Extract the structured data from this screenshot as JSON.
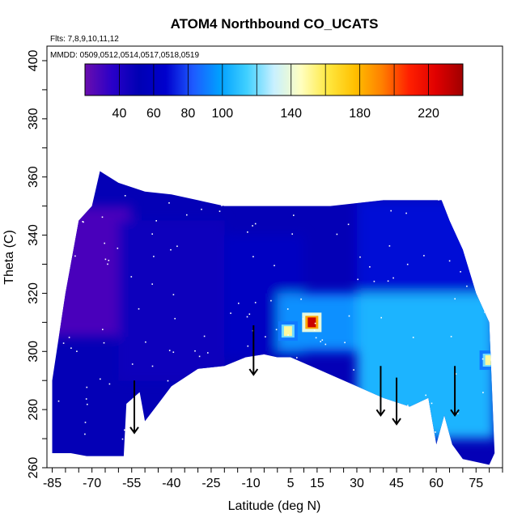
{
  "chart_data": {
    "type": "heatmap",
    "title": "ATOM4 Northbound CO_UCATS",
    "annotations": {
      "flights": "Flts: 7,8,9,10,11,12",
      "dates": "MMDD: 0509,0512,0514,0517,0518,0519"
    },
    "xlabel": "Latitude (deg N)",
    "ylabel": "Theta (C)",
    "xlim": [
      -87,
      85
    ],
    "ylim": [
      260,
      405
    ],
    "x_ticks": [
      -85,
      -70,
      -55,
      -40,
      -25,
      -10,
      5,
      15,
      30,
      45,
      60,
      75
    ],
    "y_ticks": [
      260,
      280,
      300,
      320,
      340,
      360,
      380,
      400
    ],
    "colorbar": {
      "range": [
        20,
        240
      ],
      "ticks": [
        40,
        60,
        80,
        100,
        140,
        180,
        220
      ],
      "colors": [
        "#6a0dad",
        "#2a00c8",
        "#0000b4",
        "#0000cd",
        "#1e5aff",
        "#00a0ff",
        "#40d0ff",
        "#c8f0ff",
        "#ffffc0",
        "#ffe840",
        "#ffc000",
        "#ff8000",
        "#ff2000",
        "#e00000",
        "#a00000"
      ]
    },
    "upper_boundary": [
      [
        -85,
        290
      ],
      [
        -80,
        320
      ],
      [
        -75,
        345
      ],
      [
        -70,
        350
      ],
      [
        -67,
        362
      ],
      [
        -60,
        358
      ],
      [
        -50,
        355
      ],
      [
        -40,
        354
      ],
      [
        -30,
        352
      ],
      [
        -20,
        350
      ],
      [
        -10,
        350
      ],
      [
        0,
        350
      ],
      [
        10,
        350
      ],
      [
        20,
        350
      ],
      [
        30,
        351
      ],
      [
        40,
        352
      ],
      [
        50,
        352
      ],
      [
        62,
        352
      ],
      [
        65,
        345
      ],
      [
        70,
        335
      ],
      [
        75,
        320
      ],
      [
        80,
        310
      ]
    ],
    "lower_boundary": [
      [
        -85,
        265
      ],
      [
        -78,
        265
      ],
      [
        -72,
        264
      ],
      [
        -65,
        264
      ],
      [
        -58,
        264
      ],
      [
        -57,
        282
      ],
      [
        -52,
        286
      ],
      [
        -50,
        276
      ],
      [
        -45,
        282
      ],
      [
        -40,
        288
      ],
      [
        -30,
        294
      ],
      [
        -20,
        295
      ],
      [
        -12,
        298
      ],
      [
        -5,
        299
      ],
      [
        0,
        298
      ],
      [
        5,
        298
      ],
      [
        10,
        296
      ],
      [
        20,
        292
      ],
      [
        30,
        288
      ],
      [
        40,
        284
      ],
      [
        50,
        281
      ],
      [
        57,
        284
      ],
      [
        60,
        268
      ],
      [
        63,
        278
      ],
      [
        66,
        268
      ],
      [
        70,
        263
      ],
      [
        80,
        261
      ],
      [
        82,
        265
      ]
    ],
    "regions": [
      {
        "name": "southern-stratosphere-purple",
        "x": [
          -87,
          -55
        ],
        "y": [
          305,
          350
        ],
        "value": 28
      },
      {
        "name": "southern-core-blue",
        "x": [
          -60,
          -20
        ],
        "y": [
          290,
          345
        ],
        "value": 45
      },
      {
        "name": "tropical-blue",
        "x": [
          -20,
          10
        ],
        "y": [
          298,
          340
        ],
        "value": 60
      },
      {
        "name": "tropical-light-blue",
        "x": [
          0,
          30
        ],
        "y": [
          300,
          320
        ],
        "value": 95
      },
      {
        "name": "northern-light-blue",
        "x": [
          30,
          82
        ],
        "y": [
          270,
          320
        ],
        "value": 105
      },
      {
        "name": "northern-upper-blue",
        "x": [
          30,
          80
        ],
        "y": [
          320,
          352
        ],
        "value": 70
      }
    ],
    "hotspots": [
      {
        "x": 4,
        "y": 307,
        "value": 150
      },
      {
        "x": 13,
        "y": 310,
        "value": 230
      },
      {
        "x": 80,
        "y": 297,
        "value": 150
      }
    ],
    "arrows_latitude": [
      -54,
      -9,
      39,
      45,
      67
    ]
  }
}
